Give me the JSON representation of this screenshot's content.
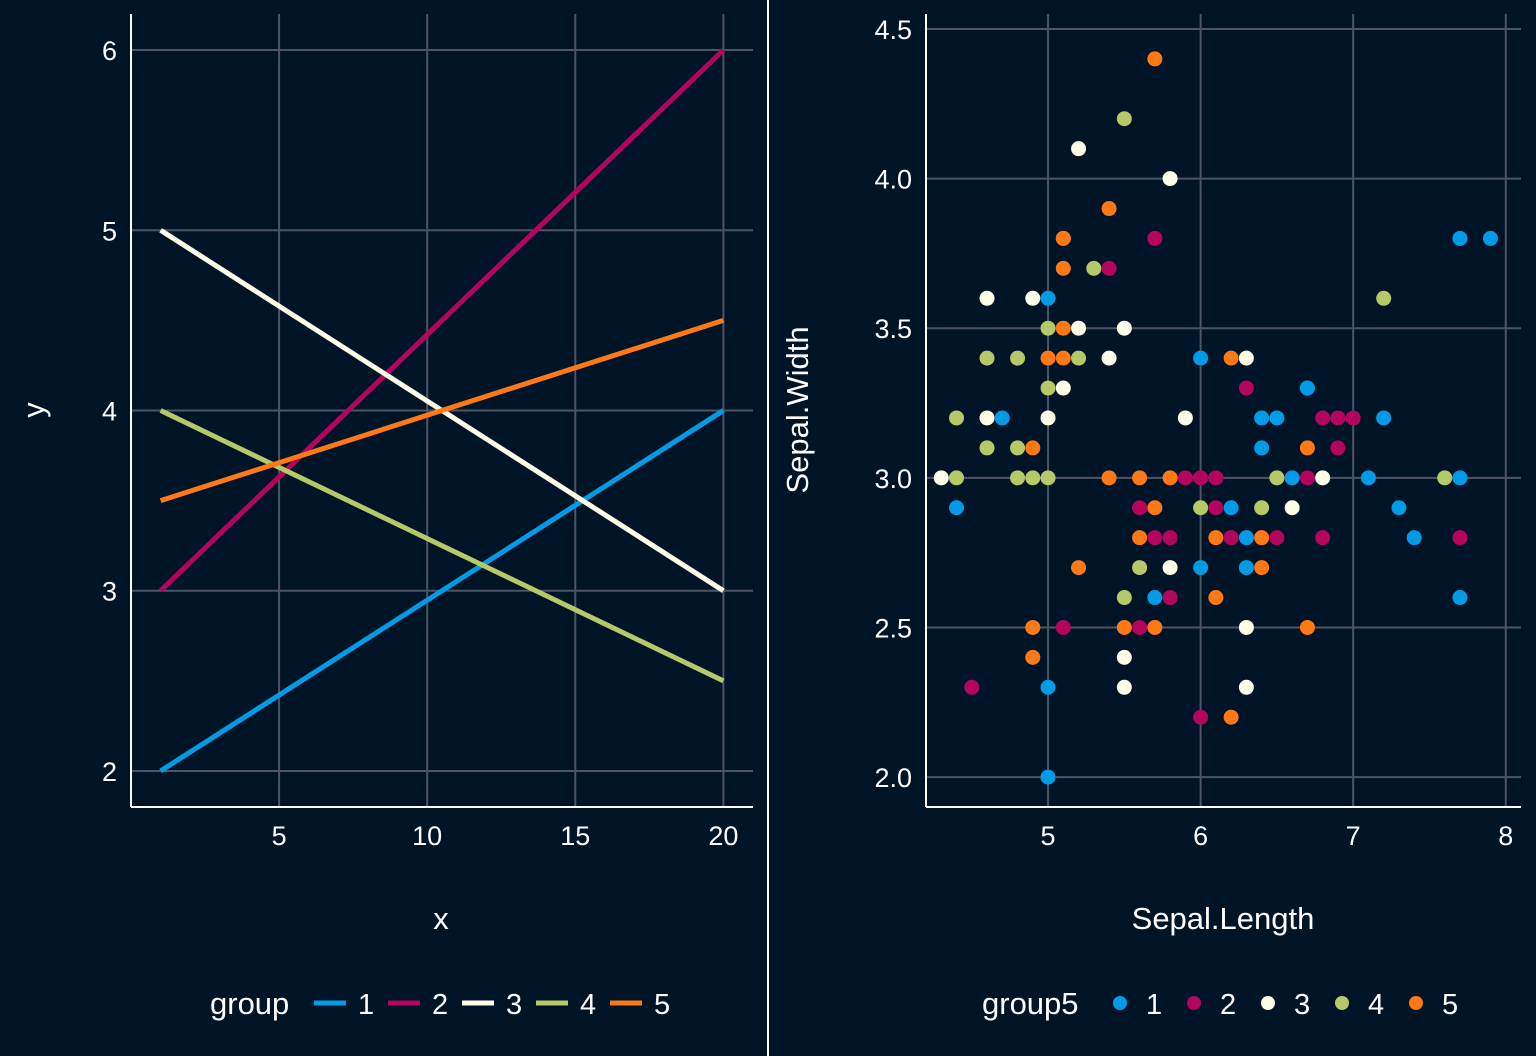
{
  "colors": {
    "background": "#001428",
    "grid": "#4b5563",
    "axis": "#ffffff",
    "text": "#ffffff",
    "palette": [
      "#039be5",
      "#b4055e",
      "#fffde7",
      "#b5c968",
      "#ff7816"
    ]
  },
  "chart_data": [
    {
      "type": "line",
      "xlabel": "x",
      "ylabel": "y",
      "xlim": [
        0,
        21
      ],
      "ylim": [
        1.8,
        6.2
      ],
      "x_ticks": [
        5,
        10,
        15,
        20
      ],
      "y_ticks": [
        2,
        3,
        4,
        5,
        6
      ],
      "x_tick_labels": [
        "5",
        "10",
        "15",
        "20"
      ],
      "y_tick_labels": [
        "2",
        "3",
        "4",
        "5",
        "6"
      ],
      "grid": true,
      "legend": {
        "title": "group",
        "position": "bottom",
        "labels": [
          "1",
          "2",
          "3",
          "4",
          "5"
        ]
      },
      "series": [
        {
          "name": "1",
          "x": [
            1,
            20
          ],
          "values": [
            2,
            4
          ]
        },
        {
          "name": "2",
          "x": [
            1,
            20
          ],
          "values": [
            3,
            6
          ]
        },
        {
          "name": "3",
          "x": [
            1,
            20
          ],
          "values": [
            5,
            3
          ]
        },
        {
          "name": "4",
          "x": [
            1,
            20
          ],
          "values": [
            4,
            2.5
          ]
        },
        {
          "name": "5",
          "x": [
            1,
            20
          ],
          "values": [
            3.5,
            4.5
          ]
        }
      ]
    },
    {
      "type": "scatter",
      "xlabel": "Sepal.Length",
      "ylabel": "Sepal.Width",
      "xlim": [
        4.2,
        8.1
      ],
      "ylim": [
        1.9,
        4.55
      ],
      "x_ticks": [
        5,
        6,
        7,
        8
      ],
      "y_ticks": [
        2.0,
        2.5,
        3.0,
        3.5,
        4.0,
        4.5
      ],
      "x_tick_labels": [
        "5",
        "6",
        "7",
        "8"
      ],
      "y_tick_labels": [
        "2.0",
        "2.5",
        "3.0",
        "3.5",
        "4.0",
        "4.5"
      ],
      "grid": true,
      "legend": {
        "title": "group5",
        "position": "bottom",
        "labels": [
          "1",
          "2",
          "3",
          "4",
          "5"
        ]
      },
      "series": [
        {
          "name": "1",
          "points": [
            [
              5.0,
              3.6
            ],
            [
              4.4,
              2.9
            ],
            [
              4.7,
              3.2
            ],
            [
              5.0,
              2.0
            ],
            [
              5.0,
              2.3
            ],
            [
              6.0,
              3.4
            ],
            [
              6.0,
              2.7
            ],
            [
              6.2,
              2.9
            ],
            [
              6.3,
              2.8
            ],
            [
              6.3,
              2.7
            ],
            [
              6.4,
              3.2
            ],
            [
              6.4,
              3.1
            ],
            [
              6.5,
              3.2
            ],
            [
              6.6,
              3.0
            ],
            [
              6.7,
              3.3
            ],
            [
              6.7,
              3.3
            ],
            [
              5.7,
              2.6
            ],
            [
              7.1,
              3.0
            ],
            [
              7.2,
              3.2
            ],
            [
              7.3,
              2.9
            ],
            [
              7.4,
              2.8
            ],
            [
              7.7,
              3.8
            ],
            [
              7.9,
              3.8
            ],
            [
              7.7,
              3.0
            ],
            [
              7.7,
              2.6
            ]
          ]
        },
        {
          "name": "2",
          "points": [
            [
              5.7,
              3.8
            ],
            [
              5.4,
              3.7
            ],
            [
              4.5,
              2.3
            ],
            [
              5.1,
              2.5
            ],
            [
              5.6,
              2.9
            ],
            [
              5.6,
              2.5
            ],
            [
              5.7,
              2.8
            ],
            [
              5.8,
              2.8
            ],
            [
              5.8,
              2.6
            ],
            [
              5.9,
              3.0
            ],
            [
              6.0,
              3.0
            ],
            [
              6.0,
              2.2
            ],
            [
              6.1,
              3.0
            ],
            [
              6.1,
              2.9
            ],
            [
              6.2,
              2.8
            ],
            [
              6.3,
              3.3
            ],
            [
              6.4,
              2.8
            ],
            [
              6.5,
              2.8
            ],
            [
              6.7,
              3.0
            ],
            [
              6.8,
              3.2
            ],
            [
              6.8,
              2.8
            ],
            [
              6.9,
              3.2
            ],
            [
              6.9,
              3.1
            ],
            [
              7.0,
              3.2
            ],
            [
              7.7,
              2.8
            ]
          ]
        },
        {
          "name": "3",
          "points": [
            [
              5.2,
              4.1
            ],
            [
              5.8,
              4.0
            ],
            [
              4.6,
              3.6
            ],
            [
              4.9,
              3.6
            ],
            [
              5.2,
              3.5
            ],
            [
              5.5,
              3.5
            ],
            [
              5.4,
              3.4
            ],
            [
              5.1,
              3.3
            ],
            [
              4.6,
              3.2
            ],
            [
              5.0,
              3.2
            ],
            [
              5.9,
              3.2
            ],
            [
              4.3,
              3.0
            ],
            [
              5.5,
              2.4
            ],
            [
              5.5,
              2.3
            ],
            [
              5.8,
              2.7
            ],
            [
              6.3,
              3.4
            ],
            [
              6.3,
              2.5
            ],
            [
              6.3,
              2.3
            ],
            [
              6.6,
              2.9
            ],
            [
              6.8,
              3.0
            ]
          ]
        },
        {
          "name": "4",
          "points": [
            [
              5.5,
              4.2
            ],
            [
              5.3,
              3.7
            ],
            [
              5.0,
              3.5
            ],
            [
              5.2,
              3.4
            ],
            [
              4.6,
              3.4
            ],
            [
              4.8,
              3.4
            ],
            [
              5.0,
              3.3
            ],
            [
              4.4,
              3.2
            ],
            [
              4.6,
              3.1
            ],
            [
              4.8,
              3.1
            ],
            [
              4.4,
              3.0
            ],
            [
              4.8,
              3.0
            ],
            [
              4.9,
              3.0
            ],
            [
              5.0,
              3.0
            ],
            [
              5.6,
              2.7
            ],
            [
              5.5,
              2.6
            ],
            [
              6.0,
              2.9
            ],
            [
              6.4,
              2.9
            ],
            [
              6.5,
              3.0
            ],
            [
              7.2,
              3.6
            ],
            [
              7.6,
              3.0
            ]
          ]
        },
        {
          "name": "5",
          "points": [
            [
              5.7,
              4.4
            ],
            [
              5.4,
              3.9
            ],
            [
              5.1,
              3.8
            ],
            [
              5.1,
              3.8
            ],
            [
              5.1,
              3.7
            ],
            [
              5.1,
              3.5
            ],
            [
              5.0,
              3.4
            ],
            [
              5.1,
              3.4
            ],
            [
              4.9,
              3.1
            ],
            [
              5.4,
              3.0
            ],
            [
              5.6,
              3.0
            ],
            [
              5.8,
              3.0
            ],
            [
              4.9,
              2.5
            ],
            [
              4.9,
              2.4
            ],
            [
              5.5,
              2.5
            ],
            [
              5.7,
              2.5
            ],
            [
              5.2,
              2.7
            ],
            [
              5.6,
              2.8
            ],
            [
              5.7,
              2.9
            ],
            [
              6.1,
              2.8
            ],
            [
              6.1,
              2.6
            ],
            [
              6.2,
              3.4
            ],
            [
              6.2,
              2.2
            ],
            [
              6.4,
              2.8
            ],
            [
              6.4,
              2.7
            ],
            [
              6.7,
              3.1
            ],
            [
              6.7,
              2.5
            ]
          ]
        }
      ]
    }
  ]
}
